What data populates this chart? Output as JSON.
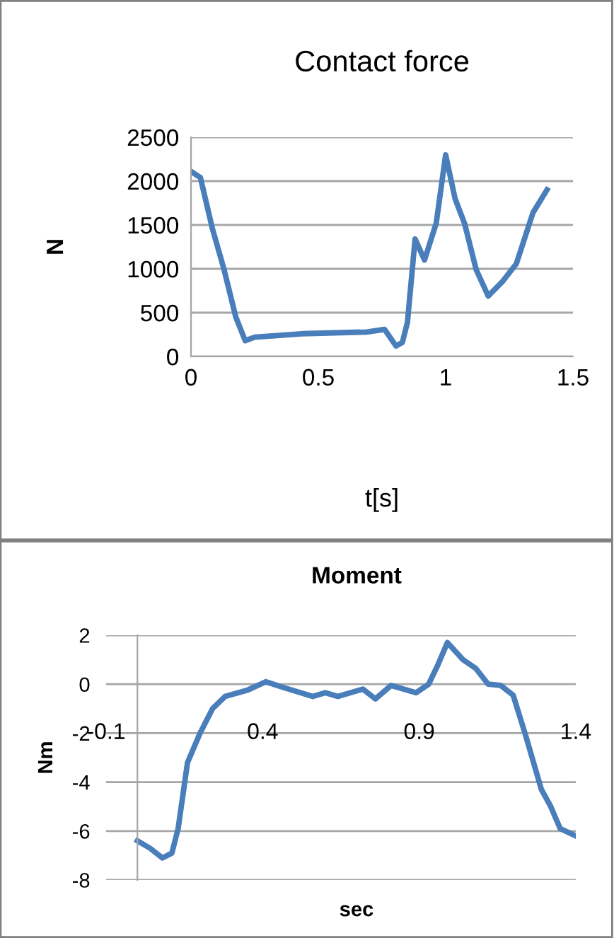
{
  "chart_data": [
    {
      "type": "line",
      "title": "Contact force",
      "xlabel": "t[s]",
      "ylabel": "N",
      "xlim": [
        0,
        1.5
      ],
      "xticks": [
        0,
        0.5,
        1,
        1.5
      ],
      "ylim": [
        0,
        2500
      ],
      "yticks": [
        0,
        500,
        1000,
        1500,
        2000,
        2500
      ],
      "grid": "y",
      "marker": "none",
      "line_style": "solid",
      "series": [
        {
          "color": "#4a7ebb",
          "x": [
            0,
            0.037,
            0.083,
            0.13,
            0.176,
            0.213,
            0.25,
            0.435,
            0.69,
            0.76,
            0.805,
            0.83,
            0.85,
            0.88,
            0.917,
            0.963,
            1.0,
            1.037,
            1.074,
            1.12,
            1.167,
            1.222,
            1.278,
            1.343,
            1.398
          ],
          "values": [
            2110,
            2040,
            1470,
            990,
            450,
            180,
            220,
            260,
            280,
            310,
            120,
            160,
            390,
            1340,
            1100,
            1520,
            2300,
            1800,
            1520,
            990,
            690,
            850,
            1060,
            1640,
            1900
          ]
        }
      ]
    },
    {
      "type": "line",
      "title": "Moment",
      "xlabel": "sec",
      "ylabel": "Nm",
      "xlim": [
        -0.1,
        1.4
      ],
      "xticks": [
        -0.1,
        0.4,
        0.9,
        1.4
      ],
      "ylim": [
        -8,
        2
      ],
      "yticks": [
        -8,
        -6,
        -4,
        -2,
        0,
        2
      ],
      "grid": "y",
      "marker": "none",
      "line_style": "solid",
      "series": [
        {
          "color": "#4a7ebb",
          "x": [
            0.0,
            0.04,
            0.08,
            0.11,
            0.13,
            0.16,
            0.18,
            0.2,
            0.24,
            0.28,
            0.35,
            0.41,
            0.47,
            0.56,
            0.6,
            0.64,
            0.72,
            0.76,
            0.81,
            0.89,
            0.93,
            0.96,
            0.99,
            1.04,
            1.08,
            1.12,
            1.16,
            1.2,
            1.24,
            1.29,
            1.32,
            1.35,
            1.4
          ],
          "values": [
            -6.4,
            -6.7,
            -7.1,
            -6.9,
            -5.9,
            -3.2,
            -2.6,
            -2.0,
            -1.0,
            -0.5,
            -0.25,
            0.1,
            -0.15,
            -0.5,
            -0.35,
            -0.5,
            -0.2,
            -0.6,
            -0.05,
            -0.35,
            0.0,
            0.8,
            1.7,
            1.0,
            0.65,
            0.0,
            -0.05,
            -0.45,
            -2.1,
            -4.3,
            -5.0,
            -5.9,
            -6.2
          ]
        }
      ]
    }
  ]
}
